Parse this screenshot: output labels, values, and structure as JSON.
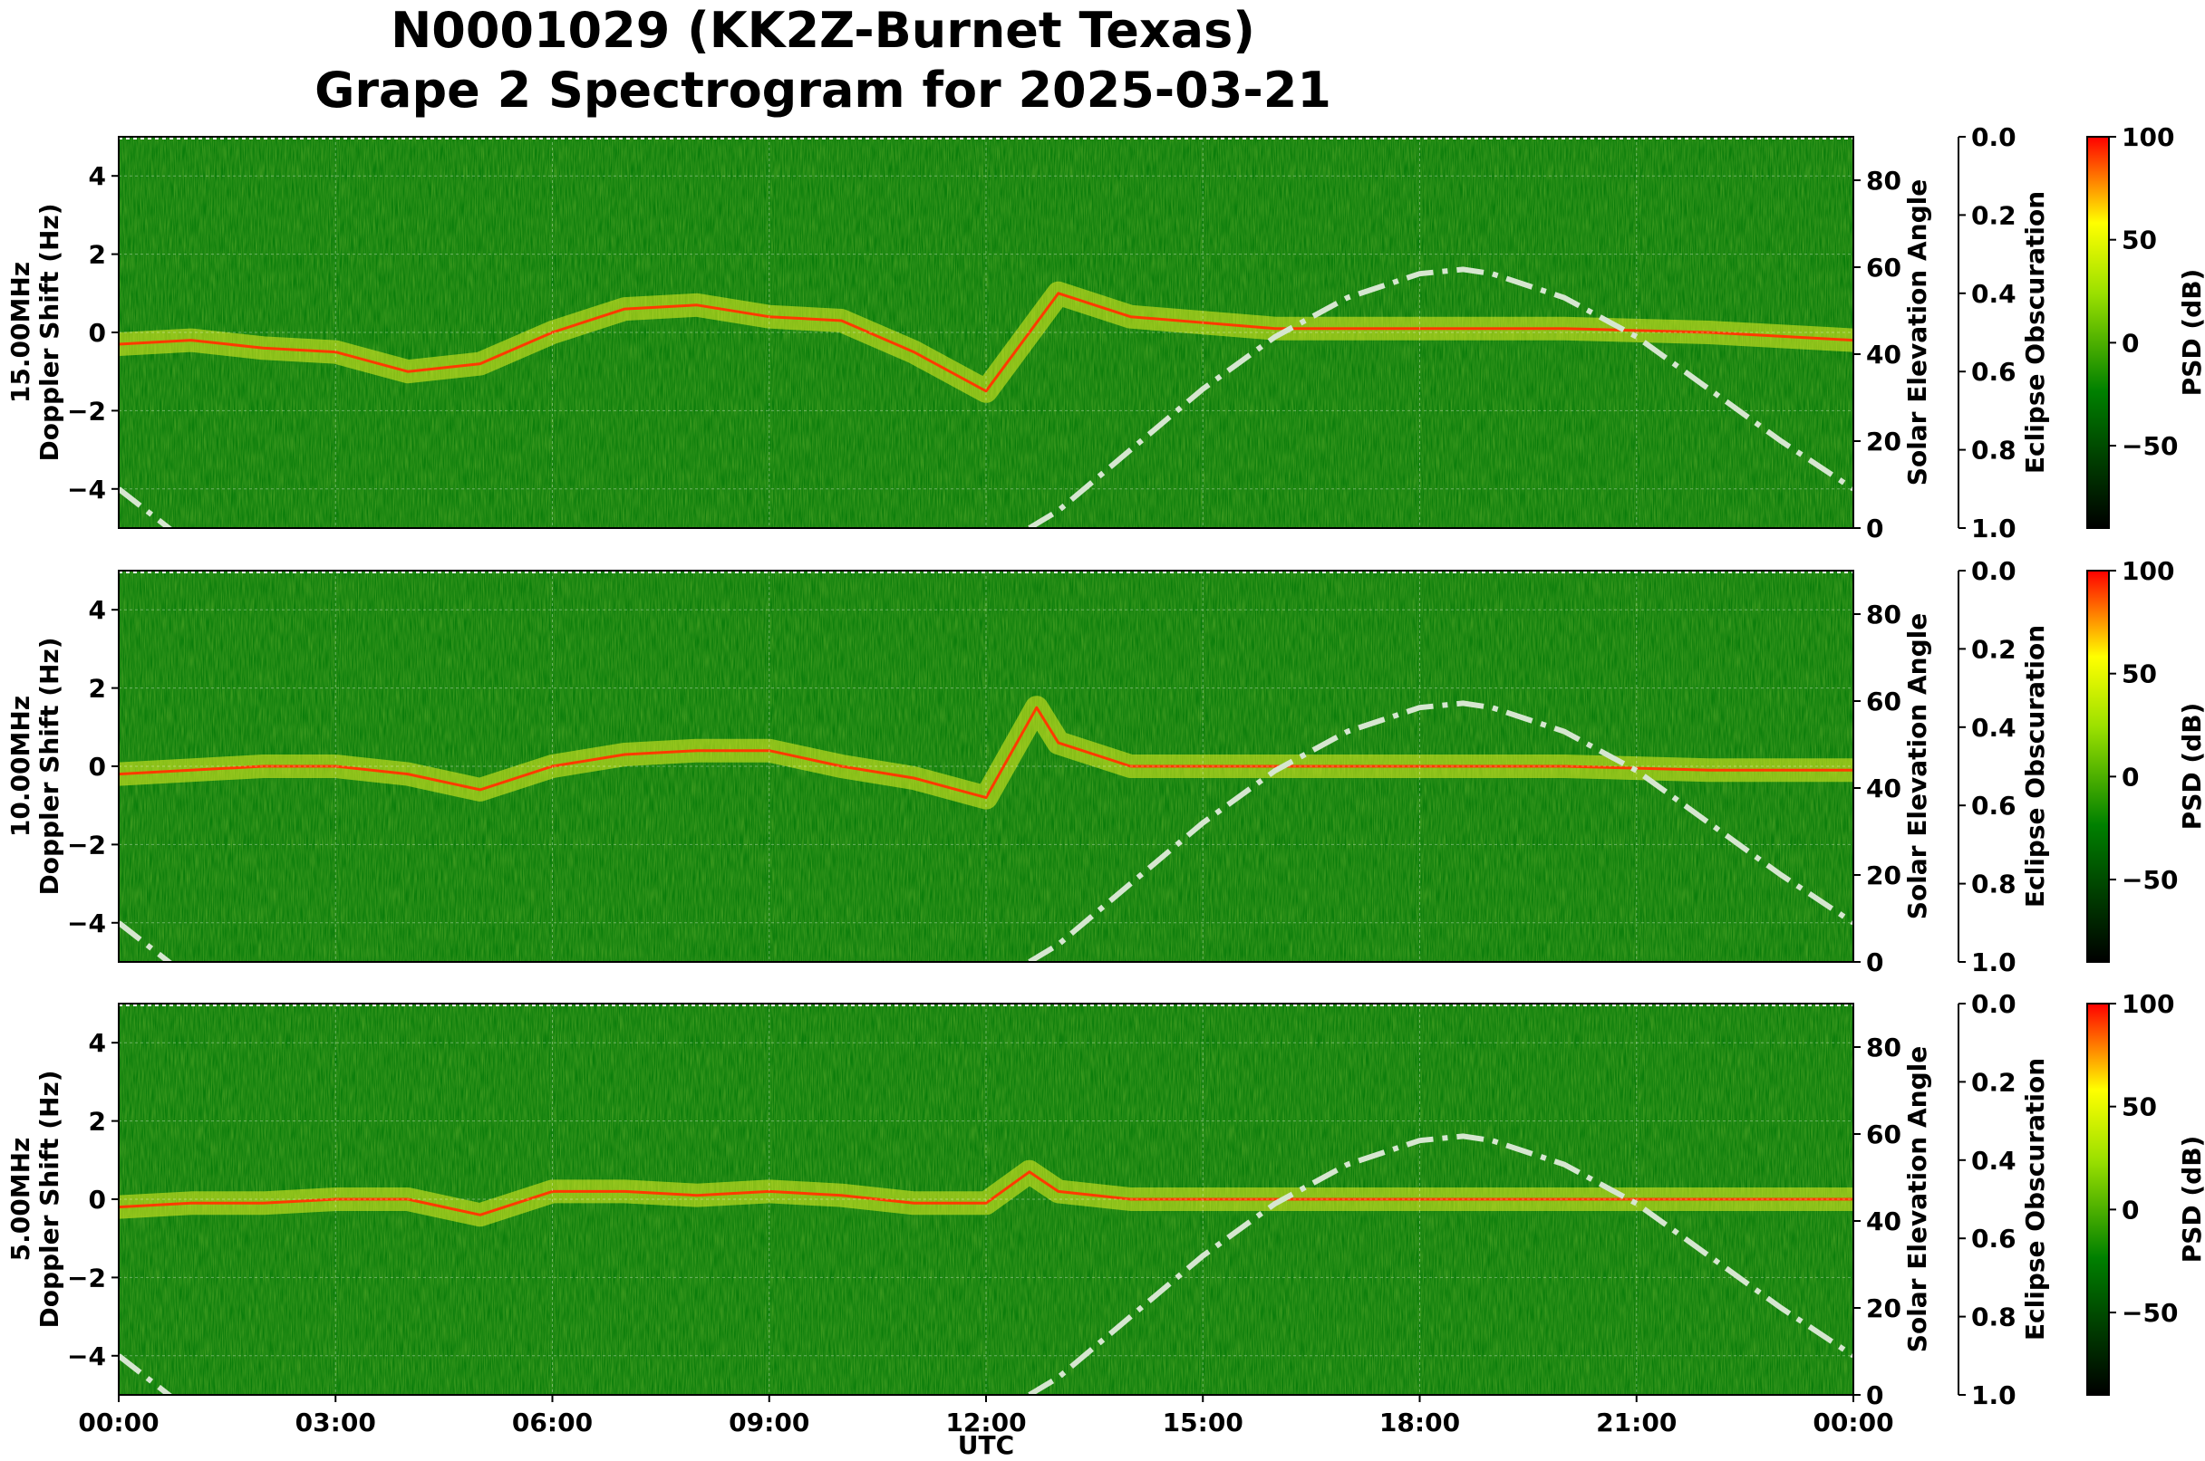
{
  "chart_data": {
    "type": "heatmap",
    "title_line1": "N0001029 (KK2Z-Burnet Texas)",
    "title_line2": "Grape 2 Spectrogram for 2025-03-21",
    "xlabel": "UTC",
    "x_ticks": [
      "00:00",
      "03:00",
      "06:00",
      "09:00",
      "12:00",
      "15:00",
      "18:00",
      "21:00",
      "00:00"
    ],
    "y_ticks": [
      "−4",
      "−2",
      "0",
      "2",
      "4"
    ],
    "ylim": [
      -5,
      5
    ],
    "elevation_label": "Solar Elevation Angle",
    "elevation_ticks": [
      "0",
      "20",
      "40",
      "60",
      "80"
    ],
    "elevation_lim": [
      0,
      90
    ],
    "eclipse_label": "Eclipse Obscuration",
    "eclipse_ticks": [
      "0.0",
      "0.2",
      "0.4",
      "0.6",
      "0.8",
      "1.0"
    ],
    "colorbar_label": "PSD (dB)",
    "colorbar_ticks": [
      "100",
      "50",
      "0",
      "−50"
    ],
    "colorbar_range": [
      -90,
      100
    ],
    "colors": {
      "low": "#000000",
      "mid_low": "#006400",
      "mid": "#7fd000",
      "high_mid": "#ffff00",
      "high": "#ff0000",
      "elevation_curve": "#d6e6d0"
    },
    "solar_elevation": {
      "hours": [
        0,
        1,
        2,
        3,
        4,
        5,
        6,
        7,
        8,
        9,
        10,
        11,
        12,
        12.6,
        13,
        14,
        15,
        16,
        17,
        18,
        18.6,
        19,
        20,
        21,
        22,
        23,
        24
      ],
      "degrees": [
        9,
        -4,
        null,
        null,
        null,
        null,
        null,
        null,
        null,
        null,
        null,
        null,
        null,
        0,
        4,
        18,
        32,
        44,
        53,
        58.5,
        59.5,
        58.5,
        53,
        44,
        32,
        20,
        9
      ]
    },
    "panels": [
      {
        "ylabel_freq": "15.00MHz",
        "ylabel": "Doppler Shift (Hz)",
        "doppler_trace": {
          "hours": [
            0,
            1,
            2,
            3,
            4,
            5,
            6,
            7,
            8,
            9,
            10,
            11,
            12,
            13,
            14,
            16,
            18,
            20,
            22,
            24
          ],
          "hz": [
            -0.3,
            -0.2,
            -0.4,
            -0.5,
            -1.0,
            -0.8,
            0.0,
            0.6,
            0.7,
            0.4,
            0.3,
            -0.5,
            -1.5,
            1.0,
            0.4,
            0.1,
            0.1,
            0.1,
            0.0,
            -0.2
          ]
        }
      },
      {
        "ylabel_freq": "10.00MHz",
        "ylabel": "Doppler Shift (Hz)",
        "doppler_trace": {
          "hours": [
            0,
            1,
            2,
            3,
            4,
            5,
            6,
            7,
            8,
            9,
            10,
            11,
            12,
            12.7,
            13,
            14,
            16,
            18,
            20,
            22,
            24
          ],
          "hz": [
            -0.2,
            -0.1,
            0.0,
            0.0,
            -0.2,
            -0.6,
            0.0,
            0.3,
            0.4,
            0.4,
            0.0,
            -0.3,
            -0.8,
            1.5,
            0.6,
            0.0,
            0.0,
            0.0,
            0.0,
            -0.1,
            -0.1
          ]
        }
      },
      {
        "ylabel_freq": "5.00MHz",
        "ylabel": "Doppler Shift (Hz)",
        "doppler_trace": {
          "hours": [
            0,
            1,
            2,
            3,
            4,
            5,
            6,
            7,
            8,
            9,
            10,
            11,
            12,
            12.6,
            13,
            14,
            16,
            18,
            20,
            22,
            24
          ],
          "hz": [
            -0.2,
            -0.1,
            -0.1,
            0.0,
            0.0,
            -0.4,
            0.2,
            0.2,
            0.1,
            0.2,
            0.1,
            -0.1,
            -0.1,
            0.7,
            0.2,
            0.0,
            0.0,
            0.0,
            0.0,
            0.0,
            0.0
          ]
        }
      }
    ]
  }
}
